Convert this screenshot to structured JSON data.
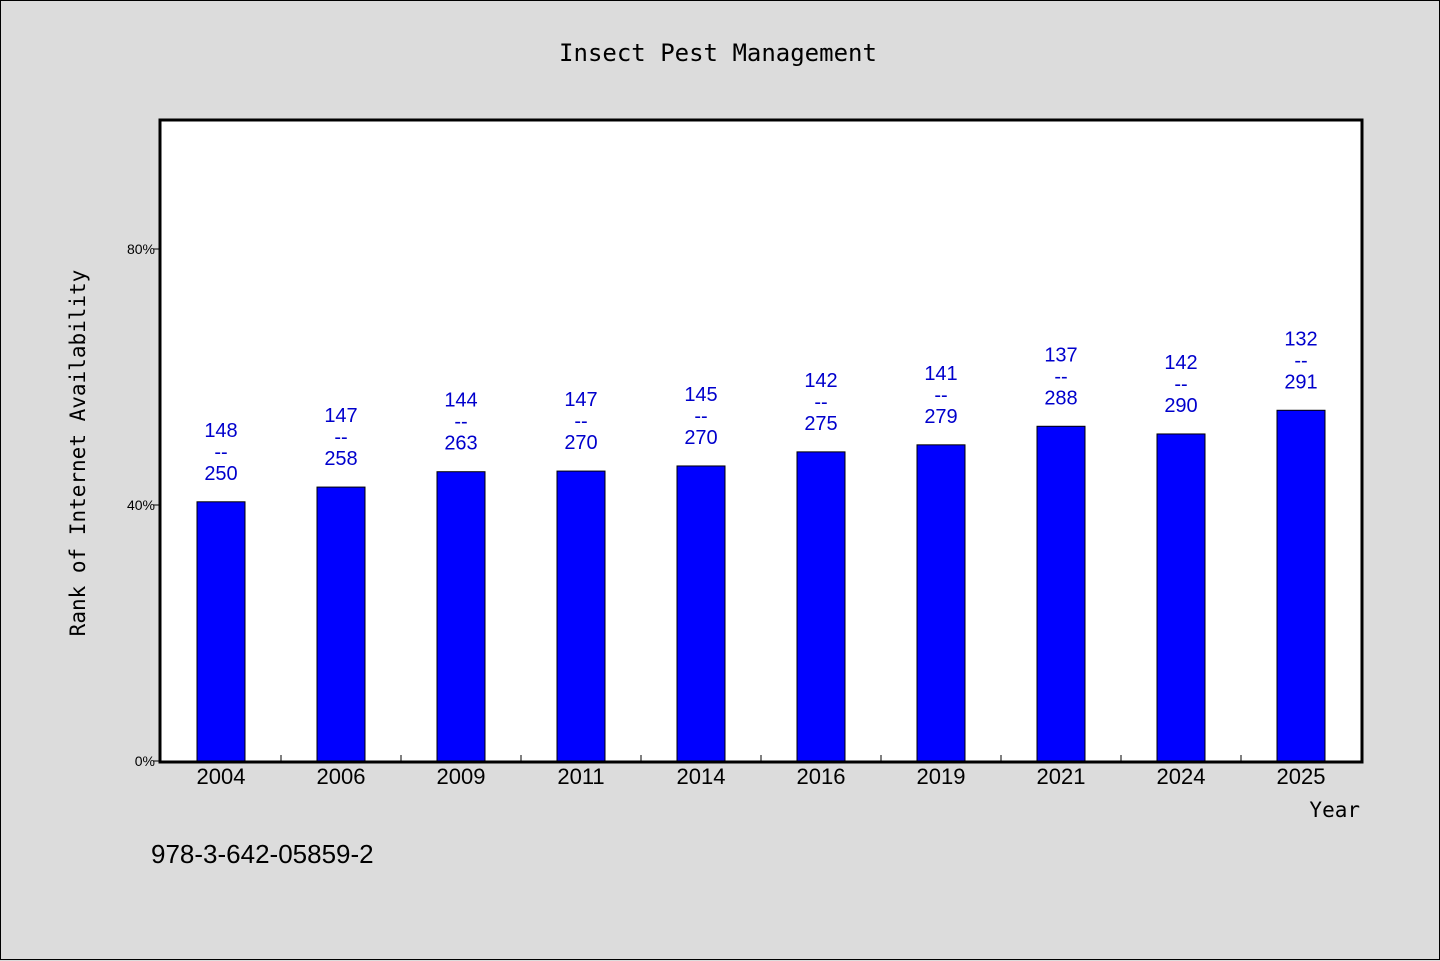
{
  "chart_data": {
    "type": "bar",
    "title": "Insect Pest Management",
    "xlabel": "Year",
    "ylabel": "Rank of Internet Availability",
    "categories": [
      "2004",
      "2006",
      "2009",
      "2011",
      "2014",
      "2016",
      "2019",
      "2021",
      "2024",
      "2025"
    ],
    "values": [
      40.5,
      42.8,
      45.2,
      45.3,
      46.1,
      48.3,
      49.4,
      52.3,
      51.1,
      54.8
    ],
    "bar_labels": [
      [
        "148",
        "--",
        "250"
      ],
      [
        "147",
        "--",
        "258"
      ],
      [
        "144",
        "--",
        "263"
      ],
      [
        "147",
        "--",
        "270"
      ],
      [
        "145",
        "--",
        "270"
      ],
      [
        "142",
        "--",
        "275"
      ],
      [
        "141",
        "--",
        "279"
      ],
      [
        "137",
        "--",
        "288"
      ],
      [
        "142",
        "--",
        "290"
      ],
      [
        "132",
        "--",
        "291"
      ]
    ],
    "ylim": [
      0,
      100
    ],
    "yticks": [
      {
        "value": 0,
        "label": "0%"
      },
      {
        "value": 40,
        "label": "40%"
      },
      {
        "value": 80,
        "label": "80%"
      }
    ],
    "grid": false,
    "legend": "none",
    "annotation": "978-3-642-05859-2",
    "colors": {
      "bar": "#0000ff",
      "bar_label": "#0000cc",
      "background": "#dcdcdc",
      "plot_background": "#ffffff"
    }
  }
}
